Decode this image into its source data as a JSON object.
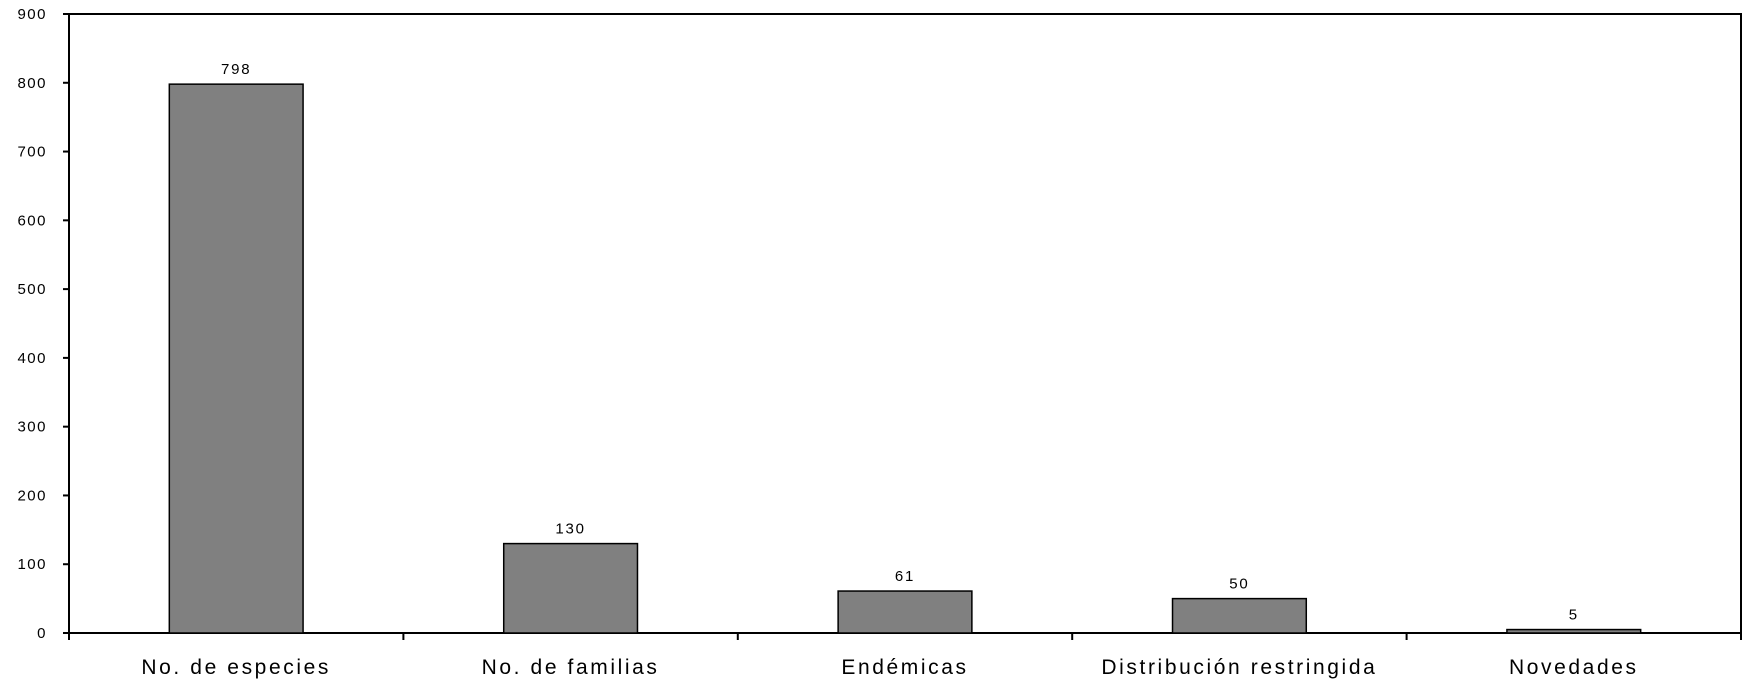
{
  "chart_data": {
    "type": "bar",
    "title": "",
    "xlabel": "",
    "ylabel": "",
    "categories": [
      "No. de especies",
      "No. de familias",
      "Endémicas",
      "Distribución restringida",
      "Novedades"
    ],
    "values": [
      798,
      130,
      61,
      50,
      5
    ],
    "data_labels": [
      "798",
      "130",
      "61",
      "50",
      "5"
    ],
    "ylim": [
      0,
      900
    ],
    "yticks": [
      0,
      100,
      200,
      300,
      400,
      500,
      600,
      700,
      800,
      900
    ],
    "ytick_labels": [
      "0",
      "100",
      "200",
      "300",
      "400",
      "500",
      "600",
      "700",
      "800",
      "900"
    ],
    "grid": false,
    "legend": "none",
    "bar_color": "#808080",
    "bar_edge_color": "#000000"
  }
}
